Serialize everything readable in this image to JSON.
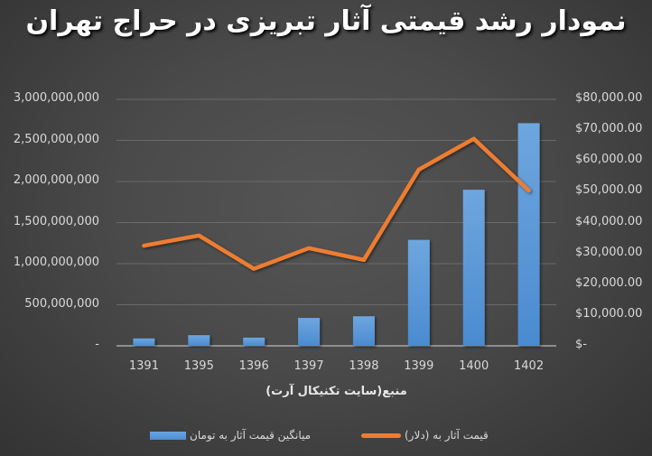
{
  "title": "نمودار رشد قیمتی آثار تبریزی در حراج تهران",
  "xlabel": "منبع(سایت  تکنیکال آرت)",
  "left_axis_ticks": [
    "3,000,000,000",
    "2,500,000,000",
    "2,000,000,000",
    "1,500,000,000",
    "1,000,000,000",
    "500,000,000",
    "-"
  ],
  "right_axis_ticks": [
    "$80,000.00",
    "$70,000.00",
    "$60,000.00",
    "$50,000.00",
    "$40,000.00",
    "$30,000.00",
    "$20,000.00",
    "$10,000.00",
    "$-"
  ],
  "x_ticks": [
    "1391",
    "1395",
    "1396",
    "1397",
    "1398",
    "1399",
    "1400",
    "1402"
  ],
  "legend": {
    "bar_label": "میانگین قیمت آثار  به تومان",
    "line_label": "قیمت آثار  به (دلار)"
  },
  "colors": {
    "bar": "#5b9bd5",
    "line": "#ed7d31",
    "gridline": "#6a6a6a",
    "axis": "#a6a6a6"
  },
  "chart_data": {
    "type": "bar+line",
    "title": "نمودار رشد قیمتی آثار تبریزی در حراج تهران",
    "xlabel": "منبع(سایت  تکنیکال آرت)",
    "categories": [
      "1391",
      "1395",
      "1396",
      "1397",
      "1398",
      "1399",
      "1400",
      "1402"
    ],
    "series": [
      {
        "name": "میانگین قیمت آثار  به تومان",
        "type": "bar",
        "axis": "left",
        "values": [
          90000000,
          130000000,
          100000000,
          340000000,
          360000000,
          1290000000,
          1900000000,
          2710000000
        ]
      },
      {
        "name": "قیمت آثار  به (دلار)",
        "type": "line",
        "axis": "right",
        "values": [
          32500,
          35800,
          25000,
          31700,
          27900,
          57200,
          67200,
          50400
        ]
      }
    ],
    "ylim_left": [
      0,
      3000000000
    ],
    "ylim_right": [
      0,
      80000
    ],
    "grid": true,
    "legend_position": "bottom"
  }
}
